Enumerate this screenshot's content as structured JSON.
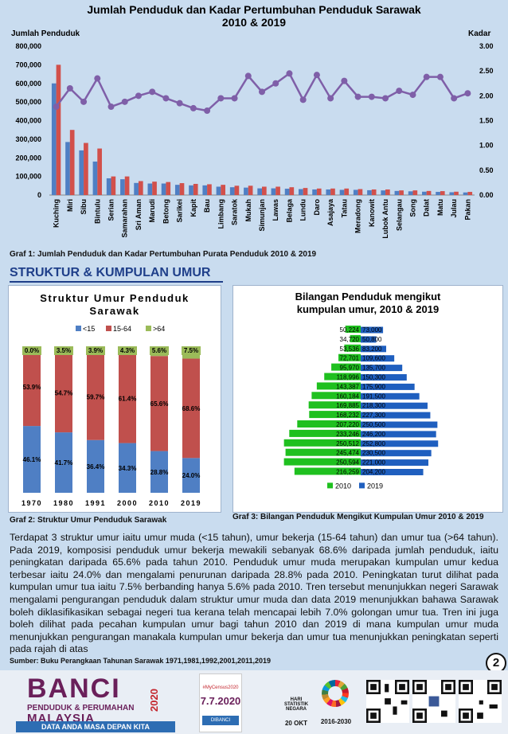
{
  "page": {
    "number": "2"
  },
  "top_chart": {
    "caption": "Graf 1: Jumlah Penduduk dan Kadar Pertumbuhan Purata Penduduk 2010 & 2019"
  },
  "section": {
    "title": "STRUKTUR & KUMPULAN UMUR"
  },
  "age_structure": {
    "caption": "Graf  2: Struktur Umur Penduduk Sarawak"
  },
  "pyramid": {
    "caption": "Graf  3: Bilangan Penduduk Mengikut Kumpulan Umur 2010 & 2019"
  },
  "chart_data": [
    {
      "type": "bar",
      "title": "Jumlah Penduduk dan Kadar Pertumbuhan Penduduk Sarawak 2010 & 2019",
      "ylabel": "Jumlah Penduduk",
      "y2label": "Kadar",
      "ylim": [
        0,
        800000
      ],
      "y2lim": [
        0,
        3
      ],
      "yticks": [
        "0",
        "100,000",
        "200,000",
        "300,000",
        "400,000",
        "500,000",
        "600,000",
        "700,000",
        "800,000"
      ],
      "y2ticks": [
        "0.00",
        "0.50",
        "1.00",
        "1.50",
        "2.00",
        "2.50",
        "3.00"
      ],
      "categories": [
        "Kuching",
        "Miri",
        "Sibu",
        "Bintulu",
        "Serian",
        "Samarahan",
        "Sri Aman",
        "Marudi",
        "Betong",
        "Sarikei",
        "Kapit",
        "Bau",
        "Limbang",
        "Saratok",
        "Mukah",
        "Simunjan",
        "Lawas",
        "Belaga",
        "Lundu",
        "Daro",
        "Asajaya",
        "Tatau",
        "Meradong",
        "Kanowit",
        "Lubok Antu",
        "Selangau",
        "Song",
        "Dalat",
        "Matu",
        "Julau",
        "Pakan"
      ],
      "series": [
        {
          "values": [
            600000,
            285000,
            240000,
            180000,
            90000,
            85000,
            65000,
            62000,
            62000,
            55000,
            52000,
            52000,
            45000,
            42000,
            40000,
            36000,
            36000,
            34000,
            32000,
            30000,
            30000,
            28000,
            28000,
            26000,
            25000,
            22000,
            20000,
            18000,
            17000,
            15000,
            14000
          ],
          "color": "#4f7fc4"
        },
        {
          "values": [
            700000,
            350000,
            280000,
            250000,
            100000,
            100000,
            75000,
            72000,
            70000,
            64000,
            60000,
            58000,
            55000,
            50000,
            50000,
            45000,
            45000,
            42000,
            38000,
            35000,
            35000,
            35000,
            32000,
            30000,
            30000,
            25000,
            25000,
            22000,
            21000,
            18000,
            17000
          ],
          "color": "#d2504b"
        },
        {
          "type": "line",
          "axis": "y2",
          "values": [
            1.78,
            2.15,
            1.88,
            2.35,
            1.78,
            1.88,
            2.0,
            2.08,
            1.95,
            1.85,
            1.75,
            1.7,
            1.95,
            1.95,
            2.4,
            2.08,
            2.25,
            2.45,
            1.92,
            2.42,
            1.95,
            2.3,
            1.98,
            1.98,
            1.95,
            2.1,
            2.02,
            2.38,
            2.38,
            1.95,
            2.05
          ],
          "color": "#7f5fa8"
        }
      ]
    },
    {
      "type": "bar",
      "stacked": true,
      "title": "Struktur Umur Penduduk Sarawak",
      "categories": [
        "1970",
        "1980",
        "1991",
        "2000",
        "2010",
        "2019"
      ],
      "series": [
        {
          "name": "<15",
          "values": [
            46.1,
            41.7,
            36.4,
            34.3,
            28.8,
            24.0
          ],
          "labels": [
            "46.1%",
            "41.7%",
            "36.4%",
            "34.3%",
            "28.8%",
            "24.0%"
          ],
          "color": "#4f7fc4"
        },
        {
          "name": "15-64",
          "values": [
            53.9,
            54.7,
            59.7,
            61.4,
            65.6,
            68.6
          ],
          "labels": [
            "53.9%",
            "54.7%",
            "59.7%",
            "61.4%",
            "65.6%",
            "68.6%"
          ],
          "color": "#c0504d"
        },
        {
          "name": ">64",
          "values": [
            0.0,
            3.5,
            3.9,
            4.3,
            5.6,
            7.5
          ],
          "labels": [
            "0.0%",
            "3.5%",
            "3.9%",
            "4.3%",
            "5.6%",
            "7.5%"
          ],
          "color": "#9bbb59"
        }
      ]
    },
    {
      "type": "bar",
      "orientation": "horizontal",
      "title": "Bilangan Penduduk mengikut kumpulan umur, 2010 & 2019",
      "series": [
        {
          "name": "2010",
          "color": "#1fc01f",
          "values": [
            50224,
            34720,
            53536,
            72701,
            95970,
            118996,
            143387,
            160184,
            169885,
            168232,
            207220,
            233246,
            250512,
            245474,
            250594,
            216259
          ],
          "labels": [
            "50,224",
            "34,720",
            "53,536",
            "72,701",
            "95,970",
            "118,996",
            "143,387",
            "160,184",
            "169,885",
            "168,232",
            "207,220",
            "233,246",
            "250,512",
            "245,474",
            "250,594",
            "216,259"
          ]
        },
        {
          "name": "2019",
          "color": "#1f5fbf",
          "values": [
            73000,
            50800,
            83200,
            109600,
            135700,
            150300,
            175900,
            191500,
            218300,
            227300,
            250500,
            246200,
            252800,
            230500,
            221000,
            204200
          ],
          "labels": [
            "73,000",
            "50,800",
            "83,200",
            "109,600",
            "135,700",
            "150,300",
            "175,900",
            "191,500",
            "218,300",
            "227,300",
            "250,500",
            "246,200",
            "252,800",
            "230,500",
            "221,000",
            "204,200"
          ]
        }
      ]
    }
  ],
  "paragraph": "Terdapat 3 struktur umur iaitu umur muda (<15 tahun), umur bekerja (15-64 tahun) dan umur tua (>64 tahun). Pada 2019, komposisi penduduk umur bekerja mewakili sebanyak  68.6% daripada jumlah penduduk, iaitu peningkatan daripada 65.6% pada tahun 2010. Penduduk umur muda merupakan kumpulan umur kedua terbesar iaitu 24.0% dan mengalami penurunan daripada 28.8% pada 2010. Peningkatan turut dilihat pada kumpulan umur tua iaitu 7.5% berbanding hanya 5.6% pada 2010. Tren tersebut menunjukkan negeri Sarawak mengalami pengurangan penduduk dalam struktur umur muda dan data 2019 menunjukkan bahawa Sarawak boleh diklasifikasikan sebagai negeri tua kerana telah mencapai lebih 7.0% golongan umur tua. Tren ini juga boleh dilihat pada pecahan kumpulan umur bagi tahun 2010 dan 2019 di mana kumpulan umur muda menunjukkan pengurangan manakala kumpulan umur bekerja dan umur tua menunjukkan peningkatan seperti pada rajah di atas",
  "source": "Sumber: Buku Perangkaan Tahunan Sarawak 1971,1981,1992,2001,2011,2019",
  "footer": {
    "banci_line1": "BANCI",
    "banci_line2": "PENDUDUK & PERUMAHAN",
    "banci_line3": "MALAYSIA",
    "banci_year": "2020",
    "banci_tagline": "DATA ANDA MASA DEPAN KITA",
    "date_tag": "#MyCensus2020",
    "date_value": "7.7.2020",
    "date_footer": "DIBANCI",
    "hari_statistik": "HARI STATISTIK NEGARA",
    "hari_date": "20 OKT",
    "sdg_years": "2016-2030"
  }
}
